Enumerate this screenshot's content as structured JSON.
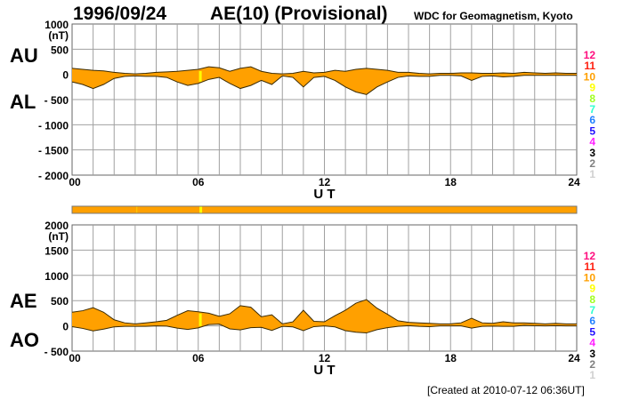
{
  "chart_data": [
    {
      "type": "area",
      "title": "AE(10) (Provisional)",
      "date": "1996/09/24",
      "source": "WDC for Geomagnetism, Kyoto",
      "xlabel": "U T",
      "unit": "(nT)",
      "xlim": [
        0,
        24
      ],
      "ylim": [
        -2000,
        1000
      ],
      "xticks": [
        "00",
        "06",
        "12",
        "18",
        "24"
      ],
      "yticks": [
        "1000",
        "500",
        "0",
        "- 500",
        "- 1000",
        "- 1500",
        "- 2000"
      ],
      "labels": {
        "upper": "AU",
        "lower": "AL"
      },
      "x": [
        0,
        0.5,
        1,
        1.5,
        2,
        2.5,
        3,
        3.5,
        4,
        4.5,
        5,
        5.5,
        6,
        6.5,
        7,
        7.5,
        8,
        8.5,
        9,
        9.5,
        10,
        10.5,
        11,
        11.5,
        12,
        12.5,
        13,
        13.5,
        14,
        14.5,
        15,
        15.5,
        16,
        16.5,
        17,
        17.5,
        18,
        18.5,
        19,
        19.5,
        20,
        20.5,
        21,
        21.5,
        22,
        22.5,
        23,
        23.5,
        24
      ],
      "series": [
        {
          "name": "AU",
          "values": [
            120,
            100,
            80,
            70,
            40,
            20,
            10,
            20,
            40,
            50,
            60,
            80,
            100,
            150,
            130,
            60,
            120,
            150,
            60,
            20,
            10,
            20,
            60,
            30,
            40,
            80,
            60,
            100,
            120,
            100,
            80,
            40,
            40,
            20,
            10,
            20,
            20,
            30,
            30,
            20,
            20,
            30,
            20,
            40,
            30,
            20,
            30,
            20,
            20
          ]
        },
        {
          "name": "AL",
          "values": [
            -150,
            -200,
            -280,
            -200,
            -80,
            -40,
            -30,
            -40,
            -40,
            -60,
            -150,
            -220,
            -180,
            -100,
            -60,
            -180,
            -280,
            -220,
            -120,
            -200,
            -30,
            -60,
            -250,
            -60,
            -40,
            -120,
            -250,
            -350,
            -400,
            -250,
            -150,
            -60,
            -30,
            -40,
            -40,
            -20,
            -20,
            -30,
            -120,
            -40,
            -30,
            -50,
            -40,
            -20,
            -20,
            -20,
            -20,
            -20,
            -20
          ]
        }
      ]
    },
    {
      "type": "area",
      "xlabel": "U T",
      "unit": "(nT)",
      "xlim": [
        0,
        24
      ],
      "ylim": [
        -500,
        2000
      ],
      "xticks": [
        "00",
        "06",
        "12",
        "18",
        "24"
      ],
      "yticks": [
        "2000",
        "1500",
        "1000",
        "500",
        "0",
        "- 500"
      ],
      "labels": {
        "upper": "AE",
        "lower": "AO"
      },
      "x": [
        0,
        0.5,
        1,
        1.5,
        2,
        2.5,
        3,
        3.5,
        4,
        4.5,
        5,
        5.5,
        6,
        6.5,
        7,
        7.5,
        8,
        8.5,
        9,
        9.5,
        10,
        10.5,
        11,
        11.5,
        12,
        12.5,
        13,
        13.5,
        14,
        14.5,
        15,
        15.5,
        16,
        16.5,
        17,
        17.5,
        18,
        18.5,
        19,
        19.5,
        20,
        20.5,
        21,
        21.5,
        22,
        22.5,
        23,
        23.5,
        24
      ],
      "series": [
        {
          "name": "AE",
          "values": [
            270,
            300,
            360,
            270,
            120,
            60,
            40,
            60,
            80,
            110,
            210,
            300,
            280,
            250,
            190,
            240,
            400,
            370,
            180,
            220,
            40,
            80,
            310,
            90,
            80,
            200,
            310,
            450,
            520,
            350,
            230,
            100,
            70,
            60,
            50,
            40,
            40,
            60,
            150,
            60,
            50,
            80,
            60,
            60,
            50,
            40,
            50,
            40,
            40
          ]
        },
        {
          "name": "AO",
          "values": [
            -15,
            -50,
            -100,
            -65,
            -20,
            -10,
            -10,
            -10,
            0,
            -5,
            -45,
            -70,
            -40,
            25,
            35,
            -60,
            -80,
            -35,
            -30,
            -90,
            -10,
            -20,
            -95,
            -15,
            0,
            -20,
            -95,
            -125,
            -140,
            -75,
            -35,
            -10,
            5,
            -10,
            -15,
            0,
            0,
            0,
            -45,
            -10,
            -5,
            -10,
            -10,
            10,
            5,
            0,
            5,
            0,
            0
          ]
        }
      ]
    }
  ],
  "station_count_legend": {
    "values": [
      "12",
      "11",
      "10",
      "9",
      "8",
      "7",
      "6",
      "5",
      "4",
      "3",
      "2",
      "1"
    ],
    "colors": [
      "#ff1080",
      "#ff2010",
      "#ffa000",
      "#ffff00",
      "#a0ff20",
      "#30ffd0",
      "#2080ff",
      "#2010ff",
      "#ff20ff",
      "#000000",
      "#808080",
      "#d0d0d0"
    ]
  },
  "station_bar": {
    "default_count": "10",
    "markers": [
      {
        "hour": 6.1,
        "count": "9"
      },
      {
        "hour": 3.1,
        "count": "9"
      }
    ]
  },
  "colors": {
    "fill": "#ffa000",
    "outline": "#3a2a00",
    "grid": "#a0a0a0",
    "marker": "#ffff00"
  },
  "footer": "[Created at 2010-07-12 06:36UT]"
}
